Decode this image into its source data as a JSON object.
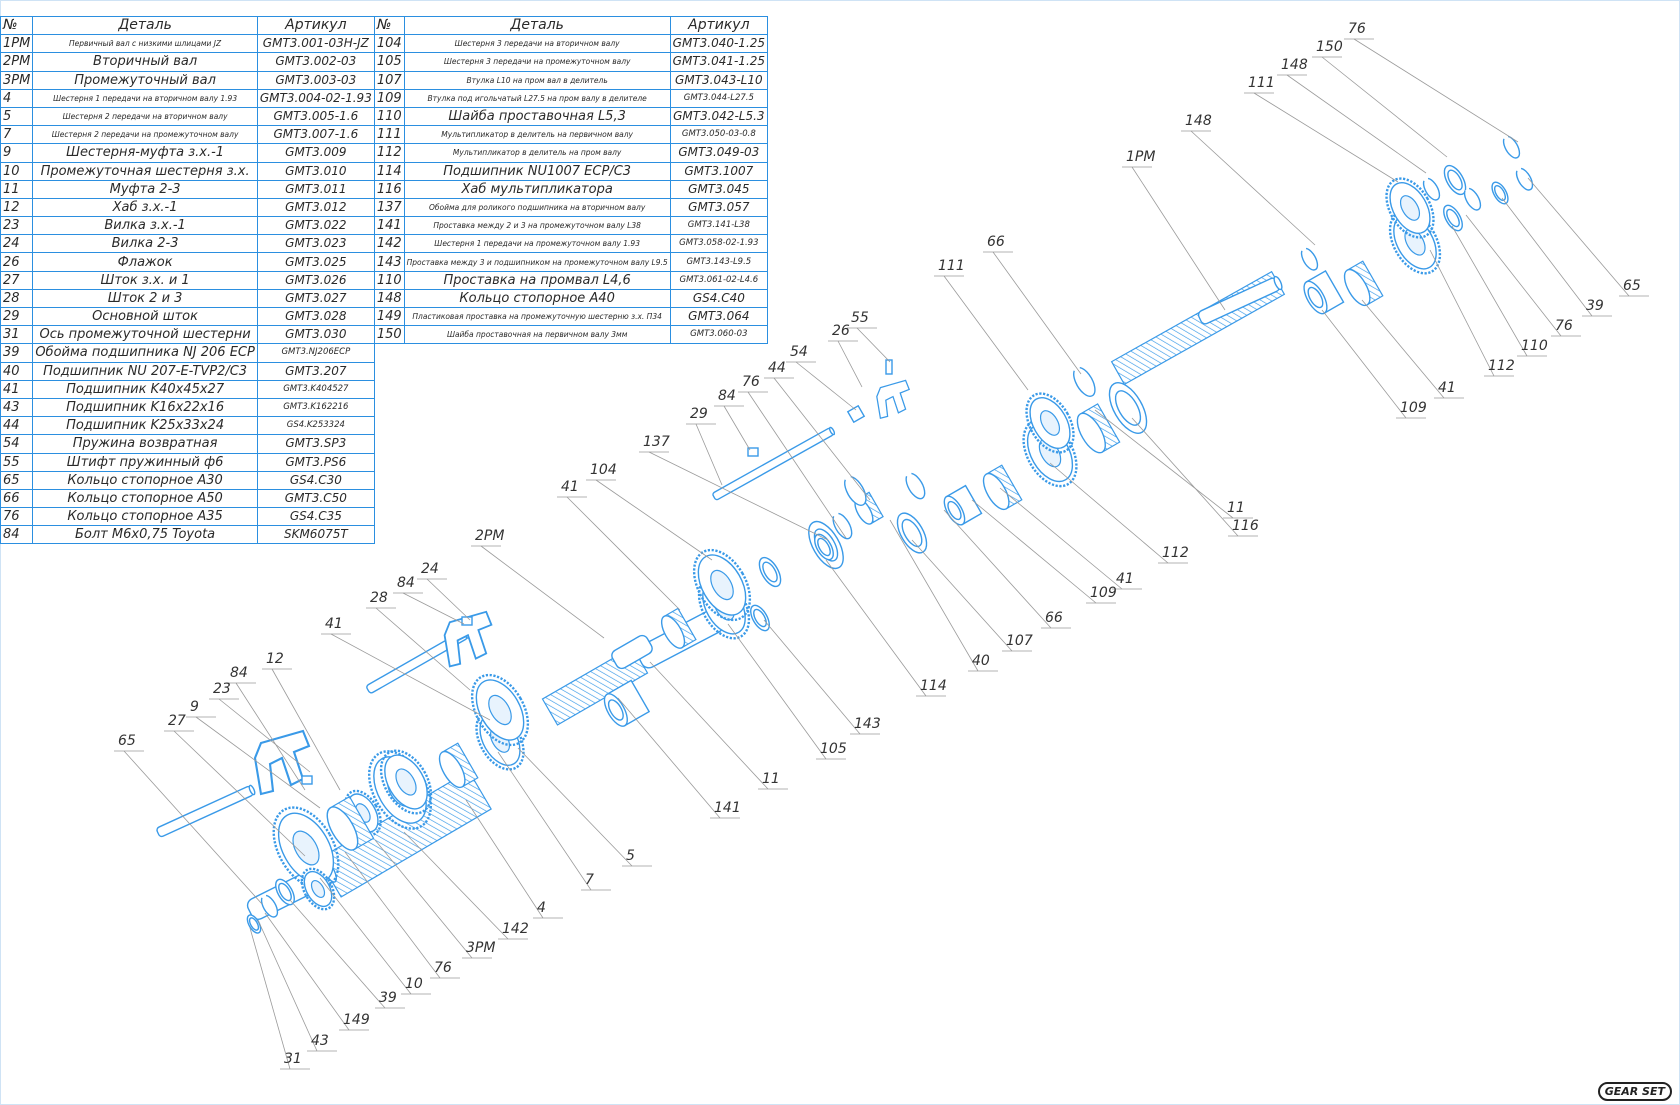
{
  "table": {
    "headers": [
      "№",
      "Деталь",
      "Артикул",
      "№",
      "Деталь",
      "Артикул"
    ],
    "left": [
      {
        "no": "1РМ",
        "name": "Первичный вал с низкими шлицами JZ",
        "art": "GMT3.001-03H-JZ",
        "sm": true
      },
      {
        "no": "2РМ",
        "name": "Вторичный вал",
        "art": "GMT3.002-03"
      },
      {
        "no": "3РМ",
        "name": "Промежуточный вал",
        "art": "GMT3.003-03"
      },
      {
        "no": "4",
        "name": "Шестерня 1 передачи на вторичном валу 1.93",
        "art": "GMT3.004-02-1.93",
        "sm": true
      },
      {
        "no": "5",
        "name": "Шестерня 2 передачи на вторичном валу",
        "art": "GMT3.005-1.6",
        "sm": true
      },
      {
        "no": "7",
        "name": "Шестерня 2 передачи на промежуточном валу",
        "art": "GMT3.007-1.6",
        "sm": true
      },
      {
        "no": "9",
        "name": "Шестерня-муфта з.х.-1",
        "art": "GMT3.009"
      },
      {
        "no": "10",
        "name": "Промежуточная шестерня з.х.",
        "art": "GMT3.010"
      },
      {
        "no": "11",
        "name": "Муфта 2-3",
        "art": "GMT3.011"
      },
      {
        "no": "12",
        "name": "Хаб з.х.-1",
        "art": "GMT3.012"
      },
      {
        "no": "23",
        "name": "Вилка з.х.-1",
        "art": "GMT3.022"
      },
      {
        "no": "24",
        "name": "Вилка 2-3",
        "art": "GMT3.023"
      },
      {
        "no": "26",
        "name": "Флажок",
        "art": "GMT3.025"
      },
      {
        "no": "27",
        "name": "Шток з.х. и 1",
        "art": "GMT3.026"
      },
      {
        "no": "28",
        "name": "Шток 2 и 3",
        "art": "GMT3.027"
      },
      {
        "no": "29",
        "name": "Основной шток",
        "art": "GMT3.028"
      },
      {
        "no": "31",
        "name": "Ось промежуточной шестерни",
        "art": "GMT3.030"
      },
      {
        "no": "39",
        "name": "Обойма подшипника NJ 206 ECP",
        "art": "GMT3.NJ206ECP",
        "asm": true
      },
      {
        "no": "40",
        "name": "Подшипник NU 207-E-TVP2/C3",
        "art": "GMT3.207"
      },
      {
        "no": "41",
        "name": "Подшипник K40x45x27",
        "art": "GMT3.K404527",
        "asm": true
      },
      {
        "no": "43",
        "name": "Подшипник K16x22x16",
        "art": "GMT3.K162216",
        "asm": true
      },
      {
        "no": "44",
        "name": "Подшипник K25x33x24",
        "art": "GS4.K253324",
        "asm": true
      },
      {
        "no": "54",
        "name": "Пружина возвратная",
        "art": "GMT3.SP3"
      },
      {
        "no": "55",
        "name": "Штифт пружинный ф6",
        "art": "GMT3.PS6"
      },
      {
        "no": "65",
        "name": "Кольцо стопорное A30",
        "art": "GS4.C30"
      },
      {
        "no": "66",
        "name": "Кольцо стопорное A50",
        "art": "GMT3.C50"
      },
      {
        "no": "76",
        "name": "Кольцо стопорное A35",
        "art": "GS4.C35"
      },
      {
        "no": "84",
        "name": "Болт M6x0,75 Toyota",
        "art": "SKM6075T"
      }
    ],
    "right": [
      {
        "no": "104",
        "name": "Шестерня 3 передачи на вторичном валу",
        "art": "GMT3.040-1.25",
        "sm": true
      },
      {
        "no": "105",
        "name": "Шестерня 3 передачи на промежуточном валу",
        "art": "GMT3.041-1.25",
        "sm": true
      },
      {
        "no": "107",
        "name": "Втулка L10 на пром вал в делитель",
        "art": "GMT3.043-L10",
        "sm": true
      },
      {
        "no": "109",
        "name": "Втулка под игольчатый L27.5 на пром валу в делителе",
        "art": "GMT3.044-L27.5",
        "sm": true,
        "asm": true
      },
      {
        "no": "110",
        "name": "Шайба проставочная L5,3",
        "art": "GMT3.042-L5.3"
      },
      {
        "no": "111",
        "name": "Мультипликатор в делитель на первичном валу",
        "art": "GMT3.050-03-0.8",
        "sm": true,
        "asm": true
      },
      {
        "no": "112",
        "name": "Мультипликатор в делитель на пром валу",
        "art": "GMT3.049-03",
        "sm": true
      },
      {
        "no": "114",
        "name": "Подшипник NU1007 ECP/C3",
        "art": "GMT3.1007"
      },
      {
        "no": "116",
        "name": "Хаб мультипликатора",
        "art": "GMT3.045"
      },
      {
        "no": "137",
        "name": "Обойма для роликого подшипника на вторичном валу",
        "art": "GMT3.057",
        "sm": true
      },
      {
        "no": "141",
        "name": "Проставка между 2 и 3 на промежуточном валу L38",
        "art": "GMT3.141-L38",
        "sm": true,
        "asm": true
      },
      {
        "no": "142",
        "name": "Шестерня 1 передачи на промежуточном валу 1.93",
        "art": "GMT3.058-02-1.93",
        "sm": true,
        "asm": true
      },
      {
        "no": "143",
        "name": "Проставка между 3 и подшипником на промежуточном валу L9.5",
        "art": "GMT3.143-L9.5",
        "sm": true,
        "asm": true
      },
      {
        "no": "110",
        "name": "Проставка на промвал L4,6",
        "art": "GMT3.061-02-L4.6",
        "asm": true
      },
      {
        "no": "148",
        "name": "Кольцо стопорное A40",
        "art": "GS4.C40"
      },
      {
        "no": "149",
        "name": "Пластиковая проставка на промежуточную шестерню з.х. П34",
        "art": "GMT3.064",
        "sm": true
      },
      {
        "no": "150",
        "name": "Шайба проставочная на первичном валу 3мм",
        "art": "GMT3.060-03",
        "sm": true,
        "asm": true
      }
    ]
  },
  "callouts": [
    "76",
    "150",
    "148",
    "111",
    "148",
    "1РМ",
    "66",
    "111",
    "55",
    "26",
    "54",
    "44",
    "76",
    "84",
    "29",
    "137",
    "104",
    "41",
    "2РМ",
    "24",
    "84",
    "28",
    "41",
    "23",
    "84",
    "12",
    "9",
    "27",
    "65",
    "65",
    "39",
    "76",
    "110",
    "112",
    "41",
    "109",
    "11",
    "116",
    "112",
    "41",
    "109",
    "66",
    "107",
    "40",
    "114",
    "143",
    "105",
    "11",
    "141",
    "5",
    "7",
    "4",
    "142",
    "3РМ",
    "76",
    "10",
    "39",
    "149",
    "43",
    "31"
  ],
  "logo": "GEAR SET"
}
